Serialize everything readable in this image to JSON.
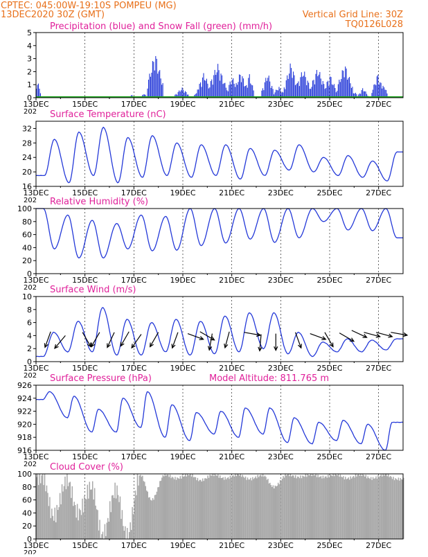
{
  "header": {
    "line1": "CPTEC:   045:00W-19:10S   POMPEU (MG)",
    "line2": "13DEC2020 30Z (GMT)",
    "grid_note": "Vertical Grid Line: 30Z",
    "code": "TQ0126L028"
  },
  "colors": {
    "header": "#e8701a",
    "title": "#e0209a",
    "line": "#2338d8",
    "snow": "#1fa81f",
    "cloud": "#a8a8a8",
    "axis": "#000000"
  },
  "x_axis": {
    "tick_labels": [
      "13DEC",
      "15DEC",
      "17DEC",
      "19DEC",
      "21DEC",
      "23DEC",
      "25DEC",
      "27DEC"
    ],
    "tick_days": [
      0,
      2,
      4,
      6,
      8,
      10,
      12,
      14
    ],
    "range_days": [
      0,
      15
    ],
    "year_label": "202"
  },
  "chart_data": [
    {
      "id": "precip",
      "type": "bar",
      "title": "Precipitation (blue) and Snow Fall (green) (mm/h)",
      "ylim": [
        0,
        5
      ],
      "y_ticks": [
        "0",
        "1",
        "2",
        "3",
        "4",
        "5"
      ],
      "series": [
        {
          "name": "Precipitation",
          "color": "#2338d8",
          "events": [
            {
              "day": 0.05,
              "peak": 1.3,
              "width": 0.15
            },
            {
              "day": 3.9,
              "peak": 0.3,
              "width": 0.05
            },
            {
              "day": 4.4,
              "peak": 0.4,
              "width": 0.1
            },
            {
              "day": 4.85,
              "peak": 3.6,
              "width": 0.35
            },
            {
              "day": 5.95,
              "peak": 0.8,
              "width": 0.3
            },
            {
              "day": 6.6,
              "peak": 0.7,
              "width": 0.15
            },
            {
              "day": 6.85,
              "peak": 2.0,
              "width": 0.3
            },
            {
              "day": 7.4,
              "peak": 2.7,
              "width": 0.4
            },
            {
              "day": 8.0,
              "peak": 1.7,
              "width": 0.25
            },
            {
              "day": 8.35,
              "peak": 2.1,
              "width": 0.3
            },
            {
              "day": 8.7,
              "peak": 1.9,
              "width": 0.2
            },
            {
              "day": 9.45,
              "peak": 2.0,
              "width": 0.25
            },
            {
              "day": 9.9,
              "peak": 0.9,
              "width": 0.25
            },
            {
              "day": 10.4,
              "peak": 2.8,
              "width": 0.3
            },
            {
              "day": 10.9,
              "peak": 2.3,
              "width": 0.35
            },
            {
              "day": 11.5,
              "peak": 2.4,
              "width": 0.35
            },
            {
              "day": 12.0,
              "peak": 1.8,
              "width": 0.3
            },
            {
              "day": 12.6,
              "peak": 2.7,
              "width": 0.35
            },
            {
              "day": 13.0,
              "peak": 0.5,
              "width": 0.15
            },
            {
              "day": 13.35,
              "peak": 0.8,
              "width": 0.2
            },
            {
              "day": 13.95,
              "peak": 1.9,
              "width": 0.25
            },
            {
              "day": 14.2,
              "peak": 1.1,
              "width": 0.15
            }
          ]
        },
        {
          "name": "Snow Fall",
          "color": "#1fa81f",
          "values": "constant",
          "value": 0
        }
      ]
    },
    {
      "id": "temperature",
      "type": "line",
      "title": "Surface Temperature (nC)",
      "ylim": [
        16,
        34
      ],
      "y_ticks": [
        "16",
        "20",
        "24",
        "28",
        "32"
      ],
      "y_tick_values": [
        16,
        20,
        24,
        28,
        32
      ],
      "daily": [
        {
          "day": 0,
          "min": 19,
          "max": 29
        },
        {
          "day": 1,
          "min": 17,
          "max": 31
        },
        {
          "day": 2,
          "min": 19,
          "max": 32.3
        },
        {
          "day": 3,
          "min": 17,
          "max": 29.5
        },
        {
          "day": 4,
          "min": 18.5,
          "max": 30
        },
        {
          "day": 5,
          "min": 19,
          "max": 28
        },
        {
          "day": 6,
          "min": 18.5,
          "max": 27.5
        },
        {
          "day": 7,
          "min": 19,
          "max": 27.5
        },
        {
          "day": 8,
          "min": 18,
          "max": 26.5
        },
        {
          "day": 9,
          "min": 19,
          "max": 26
        },
        {
          "day": 10,
          "min": 20.5,
          "max": 27.5
        },
        {
          "day": 11,
          "min": 20,
          "max": 24
        },
        {
          "day": 12,
          "min": 19,
          "max": 24.5
        },
        {
          "day": 13,
          "min": 18.5,
          "max": 23
        },
        {
          "day": 14,
          "min": 17.5,
          "max": 25.5
        }
      ]
    },
    {
      "id": "humidity",
      "type": "line",
      "title": "Relative Humidity (%)",
      "ylim": [
        0,
        100
      ],
      "y_ticks": [
        "0",
        "20",
        "40",
        "60",
        "80",
        "100"
      ],
      "y_tick_values": [
        0,
        20,
        40,
        60,
        80,
        100
      ],
      "daily": [
        {
          "day": 0,
          "min": 38,
          "max": 100
        },
        {
          "day": 1,
          "min": 24,
          "max": 90
        },
        {
          "day": 2,
          "min": 24,
          "max": 82
        },
        {
          "day": 3,
          "min": 38,
          "max": 77
        },
        {
          "day": 4,
          "min": 35,
          "max": 90
        },
        {
          "day": 5,
          "min": 36,
          "max": 88
        },
        {
          "day": 6,
          "min": 43,
          "max": 100
        },
        {
          "day": 7,
          "min": 47,
          "max": 100
        },
        {
          "day": 8,
          "min": 53,
          "max": 100
        },
        {
          "day": 9,
          "min": 48,
          "max": 100
        },
        {
          "day": 10,
          "min": 55,
          "max": 100
        },
        {
          "day": 11,
          "min": 80,
          "max": 100
        },
        {
          "day": 12,
          "min": 67,
          "max": 100
        },
        {
          "day": 13,
          "min": 66,
          "max": 100
        },
        {
          "day": 14,
          "min": 55,
          "max": 100
        }
      ]
    },
    {
      "id": "wind",
      "type": "line",
      "title": "Surface Wind (m/s)",
      "ylim": [
        0,
        10
      ],
      "y_ticks": [
        "0",
        "2",
        "4",
        "6",
        "8",
        "10"
      ],
      "y_tick_values": [
        0,
        2,
        4,
        6,
        8,
        10
      ],
      "daily": [
        {
          "day": 0,
          "min": 0.8,
          "max": 4.5
        },
        {
          "day": 1,
          "min": 1.5,
          "max": 6.2
        },
        {
          "day": 2,
          "min": 1.5,
          "max": 8.3
        },
        {
          "day": 3,
          "min": 1.0,
          "max": 6.5
        },
        {
          "day": 4,
          "min": 1.0,
          "max": 6.0
        },
        {
          "day": 5,
          "min": 1.5,
          "max": 6.5
        },
        {
          "day": 6,
          "min": 1.0,
          "max": 6.2
        },
        {
          "day": 7,
          "min": 1.2,
          "max": 7.0
        },
        {
          "day": 8,
          "min": 1.5,
          "max": 7.5
        },
        {
          "day": 9,
          "min": 2.0,
          "max": 7.5
        },
        {
          "day": 10,
          "min": 1.2,
          "max": 4.5
        },
        {
          "day": 11,
          "min": 0.8,
          "max": 3.0
        },
        {
          "day": 12,
          "min": 1.5,
          "max": 3.5
        },
        {
          "day": 13,
          "min": 1.5,
          "max": 3.3
        },
        {
          "day": 14,
          "min": 1.8,
          "max": 3.5
        }
      ],
      "wind_vectors": [
        {
          "day": 0.6,
          "speed": 4.6,
          "dir_deg": 200
        },
        {
          "day": 1.2,
          "speed": 4.0,
          "dir_deg": 220
        },
        {
          "day": 1.9,
          "speed": 4.5,
          "dir_deg": 150
        },
        {
          "day": 2.6,
          "speed": 4.5,
          "dir_deg": 210
        },
        {
          "day": 3.2,
          "speed": 4.5,
          "dir_deg": 205
        },
        {
          "day": 3.8,
          "speed": 4.6,
          "dir_deg": 210
        },
        {
          "day": 4.3,
          "speed": 4.2,
          "dir_deg": 215
        },
        {
          "day": 5.0,
          "speed": 4.5,
          "dir_deg": 210
        },
        {
          "day": 5.8,
          "speed": 4.5,
          "dir_deg": 200
        },
        {
          "day": 6.2,
          "speed": 4.3,
          "dir_deg": 110
        },
        {
          "day": 6.7,
          "speed": 4.6,
          "dir_deg": 120
        },
        {
          "day": 7.2,
          "speed": 4.3,
          "dir_deg": 190
        },
        {
          "day": 7.9,
          "speed": 4.6,
          "dir_deg": 195
        },
        {
          "day": 8.5,
          "speed": 4.5,
          "dir_deg": 100
        },
        {
          "day": 9.2,
          "speed": 4.2,
          "dir_deg": 185
        },
        {
          "day": 9.8,
          "speed": 4.3,
          "dir_deg": 180
        },
        {
          "day": 10.6,
          "speed": 4.5,
          "dir_deg": 160
        },
        {
          "day": 11.2,
          "speed": 4.3,
          "dir_deg": 110
        },
        {
          "day": 11.8,
          "speed": 4.5,
          "dir_deg": 150
        },
        {
          "day": 12.4,
          "speed": 4.4,
          "dir_deg": 120
        },
        {
          "day": 12.9,
          "speed": 4.8,
          "dir_deg": 115
        },
        {
          "day": 13.4,
          "speed": 4.5,
          "dir_deg": 105
        },
        {
          "day": 13.9,
          "speed": 4.5,
          "dir_deg": 105
        },
        {
          "day": 14.5,
          "speed": 4.5,
          "dir_deg": 100
        }
      ]
    },
    {
      "id": "pressure",
      "type": "line",
      "title": "Surface Pressure (hPa)",
      "annotation": "Model Altitude: 811.765 m",
      "ylim": [
        916,
        926
      ],
      "y_ticks": [
        "916",
        "918",
        "920",
        "922",
        "924",
        "926"
      ],
      "y_tick_values": [
        916,
        918,
        920,
        922,
        924,
        926
      ],
      "daily": [
        {
          "day": 0,
          "min": 923.8,
          "max": 925.0
        },
        {
          "day": 1,
          "min": 921.0,
          "max": 924.3
        },
        {
          "day": 2,
          "min": 918.8,
          "max": 922.3
        },
        {
          "day": 3,
          "min": 918.8,
          "max": 924.0
        },
        {
          "day": 4,
          "min": 919.5,
          "max": 925.0
        },
        {
          "day": 5,
          "min": 918.0,
          "max": 923.0
        },
        {
          "day": 6,
          "min": 917.5,
          "max": 921.8
        },
        {
          "day": 7,
          "min": 918.5,
          "max": 922.0
        },
        {
          "day": 8,
          "min": 918.0,
          "max": 922.5
        },
        {
          "day": 9,
          "min": 918.5,
          "max": 922.5
        },
        {
          "day": 10,
          "min": 917.2,
          "max": 921.0
        },
        {
          "day": 11,
          "min": 917.0,
          "max": 920.3
        },
        {
          "day": 12,
          "min": 917.5,
          "max": 920.6
        },
        {
          "day": 13,
          "min": 917.0,
          "max": 920.0
        },
        {
          "day": 14,
          "min": 916.0,
          "max": 920.3
        }
      ]
    },
    {
      "id": "cloud",
      "type": "bar",
      "title": "Cloud Cover (%)",
      "ylim": [
        0,
        100
      ],
      "y_ticks": [
        "0",
        "20",
        "40",
        "60",
        "80",
        "100"
      ],
      "y_tick_values": [
        0,
        20,
        40,
        60,
        80,
        100
      ],
      "daily": [
        {
          "day": 0,
          "min": 35,
          "max": 95
        },
        {
          "day": 1,
          "min": 40,
          "max": 90
        },
        {
          "day": 2,
          "min": 5,
          "max": 80
        },
        {
          "day": 3,
          "min": 5,
          "max": 75
        },
        {
          "day": 4,
          "min": 60,
          "max": 98
        },
        {
          "day": 5,
          "min": 93,
          "max": 99
        },
        {
          "day": 6,
          "min": 90,
          "max": 99
        },
        {
          "day": 7,
          "min": 93,
          "max": 99
        },
        {
          "day": 8,
          "min": 92,
          "max": 99
        },
        {
          "day": 9,
          "min": 80,
          "max": 98
        },
        {
          "day": 10,
          "min": 95,
          "max": 99
        },
        {
          "day": 11,
          "min": 95,
          "max": 99
        },
        {
          "day": 12,
          "min": 93,
          "max": 99
        },
        {
          "day": 13,
          "min": 93,
          "max": 99
        },
        {
          "day": 14,
          "min": 92,
          "max": 99
        }
      ]
    }
  ]
}
